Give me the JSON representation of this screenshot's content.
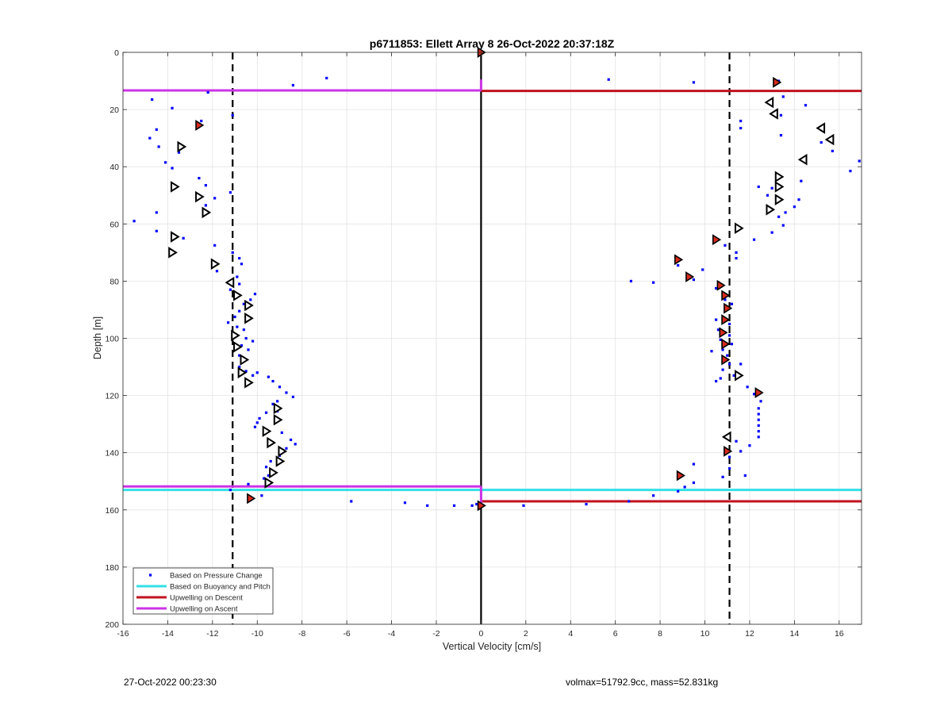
{
  "footer": {
    "left": "27-Oct-2022 00:23:30",
    "right": "volmax=51792.9cc, mass=52.831kg"
  },
  "colors": {
    "pressure": "#0000ff",
    "buoyancy": "#33e0e6",
    "descent": "#c1121f",
    "ascent": "#cc33e6",
    "marker_fill": "#d72b1b",
    "dashed": "#000000"
  },
  "chart_data": {
    "type": "scatter",
    "title": "p6711853: Ellett Array 8 26-Oct-2022 20:37:18Z",
    "xlabel": "Vertical Velocity [cm/s]",
    "ylabel": "Depth [m]",
    "xlim": [
      -16,
      17
    ],
    "ylim": [
      0,
      200
    ],
    "y_reversed": true,
    "grid": true,
    "legend_position": "bottom-left",
    "xticks": [
      -16,
      -14,
      -12,
      -10,
      -8,
      -6,
      -4,
      -2,
      0,
      2,
      4,
      6,
      8,
      10,
      12,
      14,
      16
    ],
    "yticks": [
      0,
      20,
      40,
      60,
      80,
      100,
      120,
      140,
      160,
      180,
      200
    ],
    "legend": [
      {
        "label": "Based on Pressure Change",
        "kind": "dot",
        "color": "#0000ff"
      },
      {
        "label": "Based on Buoyancy and Pitch",
        "kind": "line",
        "color": "#33e0e6"
      },
      {
        "label": "Upwelling on Descent",
        "kind": "line",
        "color": "#c1121f"
      },
      {
        "label": "Upwelling on Ascent",
        "kind": "line",
        "color": "#cc33e6"
      }
    ],
    "pressure_points": [
      [
        -14.7,
        16.5
      ],
      [
        -13.8,
        19.5
      ],
      [
        -14.5,
        27
      ],
      [
        -14.8,
        30
      ],
      [
        -14.4,
        33
      ],
      [
        -14.1,
        38.5
      ],
      [
        -13.8,
        40.5
      ],
      [
        -13.5,
        35
      ],
      [
        -12.6,
        44
      ],
      [
        -12.3,
        46.5
      ],
      [
        -12.3,
        53.5
      ],
      [
        -14.5,
        56
      ],
      [
        -15.5,
        59
      ],
      [
        -14.5,
        62.5
      ],
      [
        -13.3,
        65
      ],
      [
        -11.9,
        51
      ],
      [
        -11.2,
        49
      ],
      [
        -11.9,
        67.5
      ],
      [
        -11.1,
        70
      ],
      [
        -10.8,
        72
      ],
      [
        -10.7,
        74
      ],
      [
        -11.8,
        76.5
      ],
      [
        -10.9,
        78.5
      ],
      [
        -10.8,
        81
      ],
      [
        -11.2,
        83
      ],
      [
        -10.1,
        84.5
      ],
      [
        -10.3,
        86.5
      ],
      [
        -10.6,
        88
      ],
      [
        -10.8,
        90.5
      ],
      [
        -11.0,
        92.5
      ],
      [
        -11.3,
        94.5
      ],
      [
        -10.9,
        96
      ],
      [
        -10.6,
        97
      ],
      [
        -10.5,
        100
      ],
      [
        -10.2,
        101
      ],
      [
        -10.7,
        102.5
      ],
      [
        -10.4,
        104
      ],
      [
        -10.8,
        106
      ],
      [
        -10.6,
        108
      ],
      [
        -10.8,
        110
      ],
      [
        -10.5,
        111.5
      ],
      [
        -10.0,
        112
      ],
      [
        -10.2,
        113
      ],
      [
        -9.5,
        113.5
      ],
      [
        -9.3,
        115
      ],
      [
        -9.0,
        117
      ],
      [
        -8.7,
        119
      ],
      [
        -8.4,
        120.5
      ],
      [
        -9.1,
        122
      ],
      [
        -9.3,
        123
      ],
      [
        -9.1,
        125.5
      ],
      [
        -9.6,
        126
      ],
      [
        -9.9,
        128
      ],
      [
        -10.0,
        129.5
      ],
      [
        -10.1,
        131
      ],
      [
        -9.7,
        133.5
      ],
      [
        -8.9,
        133
      ],
      [
        -8.5,
        135.5
      ],
      [
        -8.3,
        137
      ],
      [
        -8.7,
        138.5
      ],
      [
        -9.0,
        141
      ],
      [
        -9.4,
        143
      ],
      [
        -9.6,
        145
      ],
      [
        -9.4,
        146
      ],
      [
        -9.5,
        148
      ],
      [
        -9.7,
        149
      ],
      [
        -10.4,
        151
      ],
      [
        -11.2,
        153
      ],
      [
        -9.8,
        155
      ],
      [
        -10.3,
        156.5
      ],
      [
        -12.5,
        24
      ],
      [
        -11.1,
        22
      ],
      [
        -12.2,
        14
      ],
      [
        -8.4,
        11.5
      ],
      [
        -6.9,
        9
      ],
      [
        -5.8,
        157
      ],
      [
        -3.4,
        157.5
      ],
      [
        -2.4,
        158.5
      ],
      [
        -1.2,
        158.5
      ],
      [
        -0.4,
        158.5
      ],
      [
        -0.2,
        158
      ],
      [
        1.9,
        158.5
      ],
      [
        4.7,
        158
      ],
      [
        6.6,
        157
      ],
      [
        7.7,
        155
      ],
      [
        8.8,
        153.5
      ],
      [
        9.5,
        150.5
      ],
      [
        9.5,
        144
      ],
      [
        5.7,
        9.5
      ],
      [
        9.5,
        10.5
      ],
      [
        13.3,
        10
      ],
      [
        13.5,
        15.5
      ],
      [
        14.5,
        18.5
      ],
      [
        13.4,
        22
      ],
      [
        11.6,
        24
      ],
      [
        11.6,
        26.5
      ],
      [
        13.4,
        29
      ],
      [
        15.2,
        31.5
      ],
      [
        15.7,
        34.5
      ],
      [
        16.9,
        38
      ],
      [
        16.5,
        41.5
      ],
      [
        14.3,
        45
      ],
      [
        13.0,
        47.5
      ],
      [
        12.4,
        47
      ],
      [
        12.8,
        50
      ],
      [
        14.2,
        51.5
      ],
      [
        14.0,
        54
      ],
      [
        13.6,
        56
      ],
      [
        13.3,
        57.5
      ],
      [
        13.5,
        60.5
      ],
      [
        13.0,
        63
      ],
      [
        12.2,
        65.5
      ],
      [
        10.9,
        67.5
      ],
      [
        11.4,
        70
      ],
      [
        11.4,
        72
      ],
      [
        9.9,
        76
      ],
      [
        10.5,
        82.5
      ],
      [
        10.8,
        84.5
      ],
      [
        10.9,
        86.5
      ],
      [
        11.2,
        88
      ],
      [
        6.7,
        80
      ],
      [
        7.7,
        80.5
      ],
      [
        9.5,
        79.5
      ],
      [
        8.8,
        74.5
      ],
      [
        10.5,
        93.5
      ],
      [
        11.1,
        95
      ],
      [
        10.6,
        97
      ],
      [
        11.1,
        99
      ],
      [
        10.7,
        100.5
      ],
      [
        11.2,
        102
      ],
      [
        10.8,
        104
      ],
      [
        10.3,
        104.5
      ],
      [
        11.0,
        106
      ],
      [
        11.1,
        109
      ],
      [
        11.6,
        109
      ],
      [
        10.8,
        111
      ],
      [
        11.3,
        113
      ],
      [
        10.7,
        114
      ],
      [
        10.5,
        115
      ],
      [
        11.9,
        117
      ],
      [
        12.2,
        119.5
      ],
      [
        12.5,
        122
      ],
      [
        12.4,
        124.5
      ],
      [
        12.4,
        126.5
      ],
      [
        12.4,
        128.5
      ],
      [
        12.4,
        130.5
      ],
      [
        12.4,
        132.5
      ],
      [
        12.4,
        134.5
      ],
      [
        11.4,
        136
      ],
      [
        12.0,
        137.5
      ],
      [
        11.6,
        139.5
      ],
      [
        11.1,
        141.5
      ],
      [
        11.1,
        145.5
      ],
      [
        11.8,
        148
      ],
      [
        10.8,
        148.5
      ],
      [
        9.1,
        152
      ]
    ],
    "red_triangles": [
      [
        0,
        0
      ],
      [
        13.2,
        10.5
      ],
      [
        -12.6,
        25.5
      ],
      [
        10.5,
        65.5
      ],
      [
        8.8,
        72.5
      ],
      [
        9.3,
        78.5
      ],
      [
        10.7,
        81.5
      ],
      [
        10.9,
        85
      ],
      [
        11.0,
        89.5
      ],
      [
        10.9,
        93.5
      ],
      [
        10.8,
        98
      ],
      [
        10.9,
        102
      ],
      [
        10.9,
        107.5
      ],
      [
        12.4,
        119
      ],
      [
        11.0,
        139.5
      ],
      [
        8.9,
        148
      ],
      [
        -10.3,
        156
      ],
      [
        0,
        158.5
      ]
    ],
    "open_triangles_right": [
      [
        -13.4,
        33
      ],
      [
        -13.7,
        47
      ],
      [
        -12.6,
        50.5
      ],
      [
        -12.3,
        56
      ],
      [
        -13.7,
        64.5
      ],
      [
        -13.8,
        70
      ],
      [
        -11.9,
        74
      ],
      [
        -10.9,
        85
      ],
      [
        -10.4,
        88.5
      ],
      [
        -10.4,
        93
      ],
      [
        -11.0,
        99
      ],
      [
        -10.9,
        103
      ],
      [
        -10.6,
        107.5
      ],
      [
        -10.7,
        112
      ],
      [
        -10.4,
        115.5
      ],
      [
        -9.1,
        124.5
      ],
      [
        -9.1,
        128.5
      ],
      [
        -9.6,
        132.5
      ],
      [
        -9.4,
        136.5
      ],
      [
        -8.9,
        139.5
      ],
      [
        -9.0,
        143
      ],
      [
        -9.3,
        147
      ],
      [
        -9.5,
        150.5
      ],
      [
        13.3,
        43.5
      ],
      [
        13.3,
        47
      ],
      [
        13.3,
        51.5
      ],
      [
        12.9,
        55
      ],
      [
        11.5,
        61.5
      ],
      [
        11.5,
        113
      ]
    ],
    "open_triangles_left": [
      [
        -11.2,
        80.5
      ],
      [
        12.9,
        17.5
      ],
      [
        13.1,
        21.5
      ],
      [
        15.2,
        26.5
      ],
      [
        15.6,
        30.5
      ],
      [
        14.4,
        37.5
      ],
      [
        11.0,
        134.5
      ]
    ],
    "horizontal_lines": [
      {
        "color": "#cc33e6",
        "x_from": -16,
        "x_to": 0,
        "y": 13.3
      },
      {
        "color": "#c1121f",
        "x_from": 0,
        "x_to": 17,
        "y": 13.5
      },
      {
        "color": "#cc33e6",
        "x_from": -16,
        "x_to": 0,
        "y": 151.8
      },
      {
        "color": "#33e0e6",
        "x_from": -16,
        "x_to": 17,
        "y": 153.0
      },
      {
        "color": "#c1121f",
        "x_from": 0,
        "x_to": 17,
        "y": 157.0
      }
    ],
    "dashed_vertical_lines": [
      -11.1,
      11.1
    ],
    "zero_line_x": 0
  }
}
